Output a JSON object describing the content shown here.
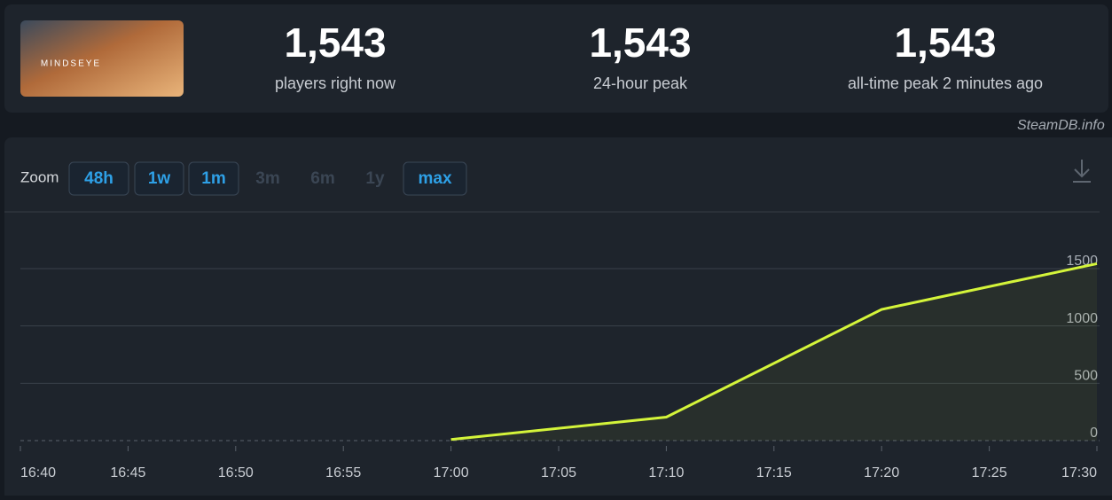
{
  "header": {
    "game_logo": "MINDSEYE",
    "stats": [
      {
        "value": "1,543",
        "label": "players right now"
      },
      {
        "value": "1,543",
        "label": "24-hour peak"
      },
      {
        "value": "1,543",
        "label": "all-time peak 2 minutes ago"
      }
    ]
  },
  "watermark": "SteamDB.info",
  "zoom": {
    "label": "Zoom",
    "options": [
      "48h",
      "1w",
      "1m",
      "3m",
      "6m",
      "1y",
      "max"
    ],
    "active": [
      true,
      true,
      true,
      false,
      false,
      false,
      true
    ]
  },
  "chart_data": {
    "type": "line",
    "xticks": [
      "16:40",
      "16:45",
      "16:50",
      "16:55",
      "17:00",
      "17:05",
      "17:10",
      "17:15",
      "17:20",
      "17:25",
      "17:30"
    ],
    "x": [
      "17:00",
      "17:10",
      "17:20",
      "17:30"
    ],
    "values": [
      10,
      205,
      1144,
      1543
    ],
    "color": "#d4f43a",
    "ylim": [
      0,
      2000
    ],
    "yticks": [
      0,
      500,
      1000,
      1500
    ],
    "grid": true
  }
}
